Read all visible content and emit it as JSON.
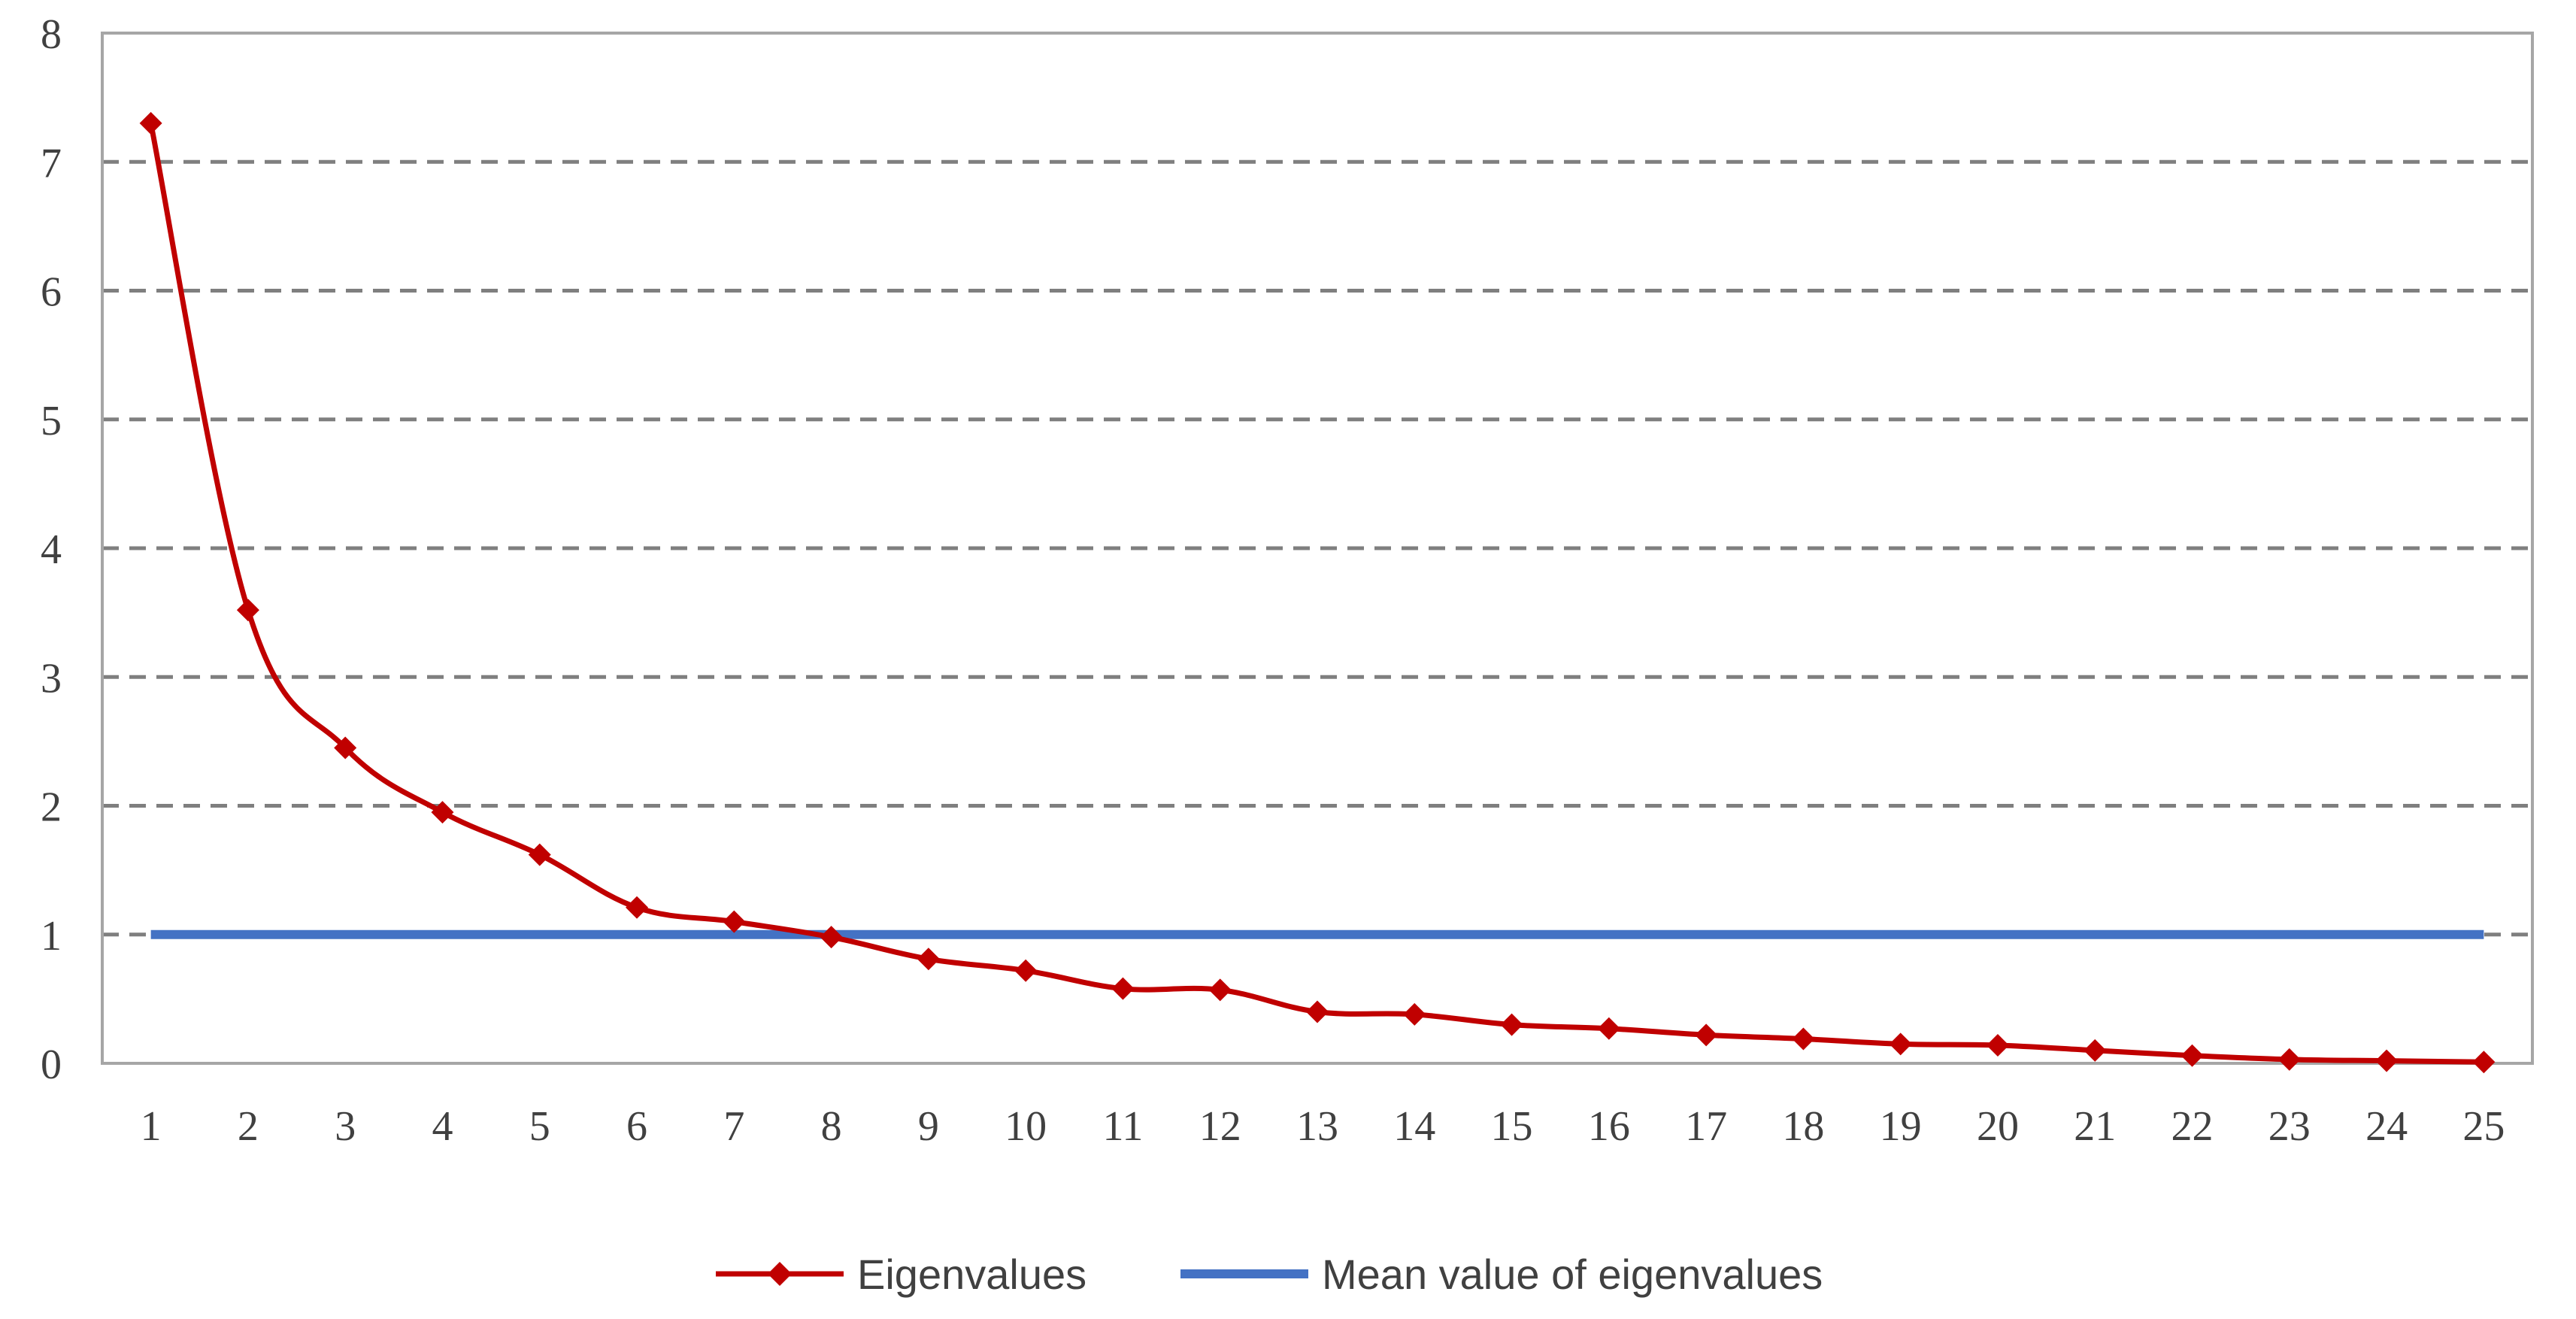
{
  "chart_data": {
    "type": "line",
    "title": "",
    "xlabel": "",
    "ylabel": "",
    "categories": [
      "1",
      "2",
      "3",
      "4",
      "5",
      "6",
      "7",
      "8",
      "9",
      "10",
      "11",
      "12",
      "13",
      "14",
      "15",
      "16",
      "17",
      "18",
      "19",
      "20",
      "21",
      "22",
      "23",
      "24",
      "25"
    ],
    "ylim": [
      0,
      8
    ],
    "yticks": [
      "0",
      "1",
      "2",
      "3",
      "4",
      "5",
      "6",
      "7",
      "8"
    ],
    "grid": "horizontal-dashed",
    "legend_position": "bottom",
    "series": [
      {
        "name": "Eigenvalues",
        "color": "#C00000",
        "marker": "diamond",
        "values": [
          7.3,
          3.52,
          2.45,
          1.95,
          1.62,
          1.21,
          1.1,
          0.98,
          0.81,
          0.72,
          0.58,
          0.57,
          0.4,
          0.38,
          0.3,
          0.27,
          0.22,
          0.19,
          0.15,
          0.14,
          0.1,
          0.06,
          0.03,
          0.02,
          0.01
        ]
      },
      {
        "name": "Mean value of eigenvalues",
        "color": "#4472C4",
        "marker": "none",
        "values": [
          1,
          1,
          1,
          1,
          1,
          1,
          1,
          1,
          1,
          1,
          1,
          1,
          1,
          1,
          1,
          1,
          1,
          1,
          1,
          1,
          1,
          1,
          1,
          1,
          1
        ]
      }
    ]
  }
}
